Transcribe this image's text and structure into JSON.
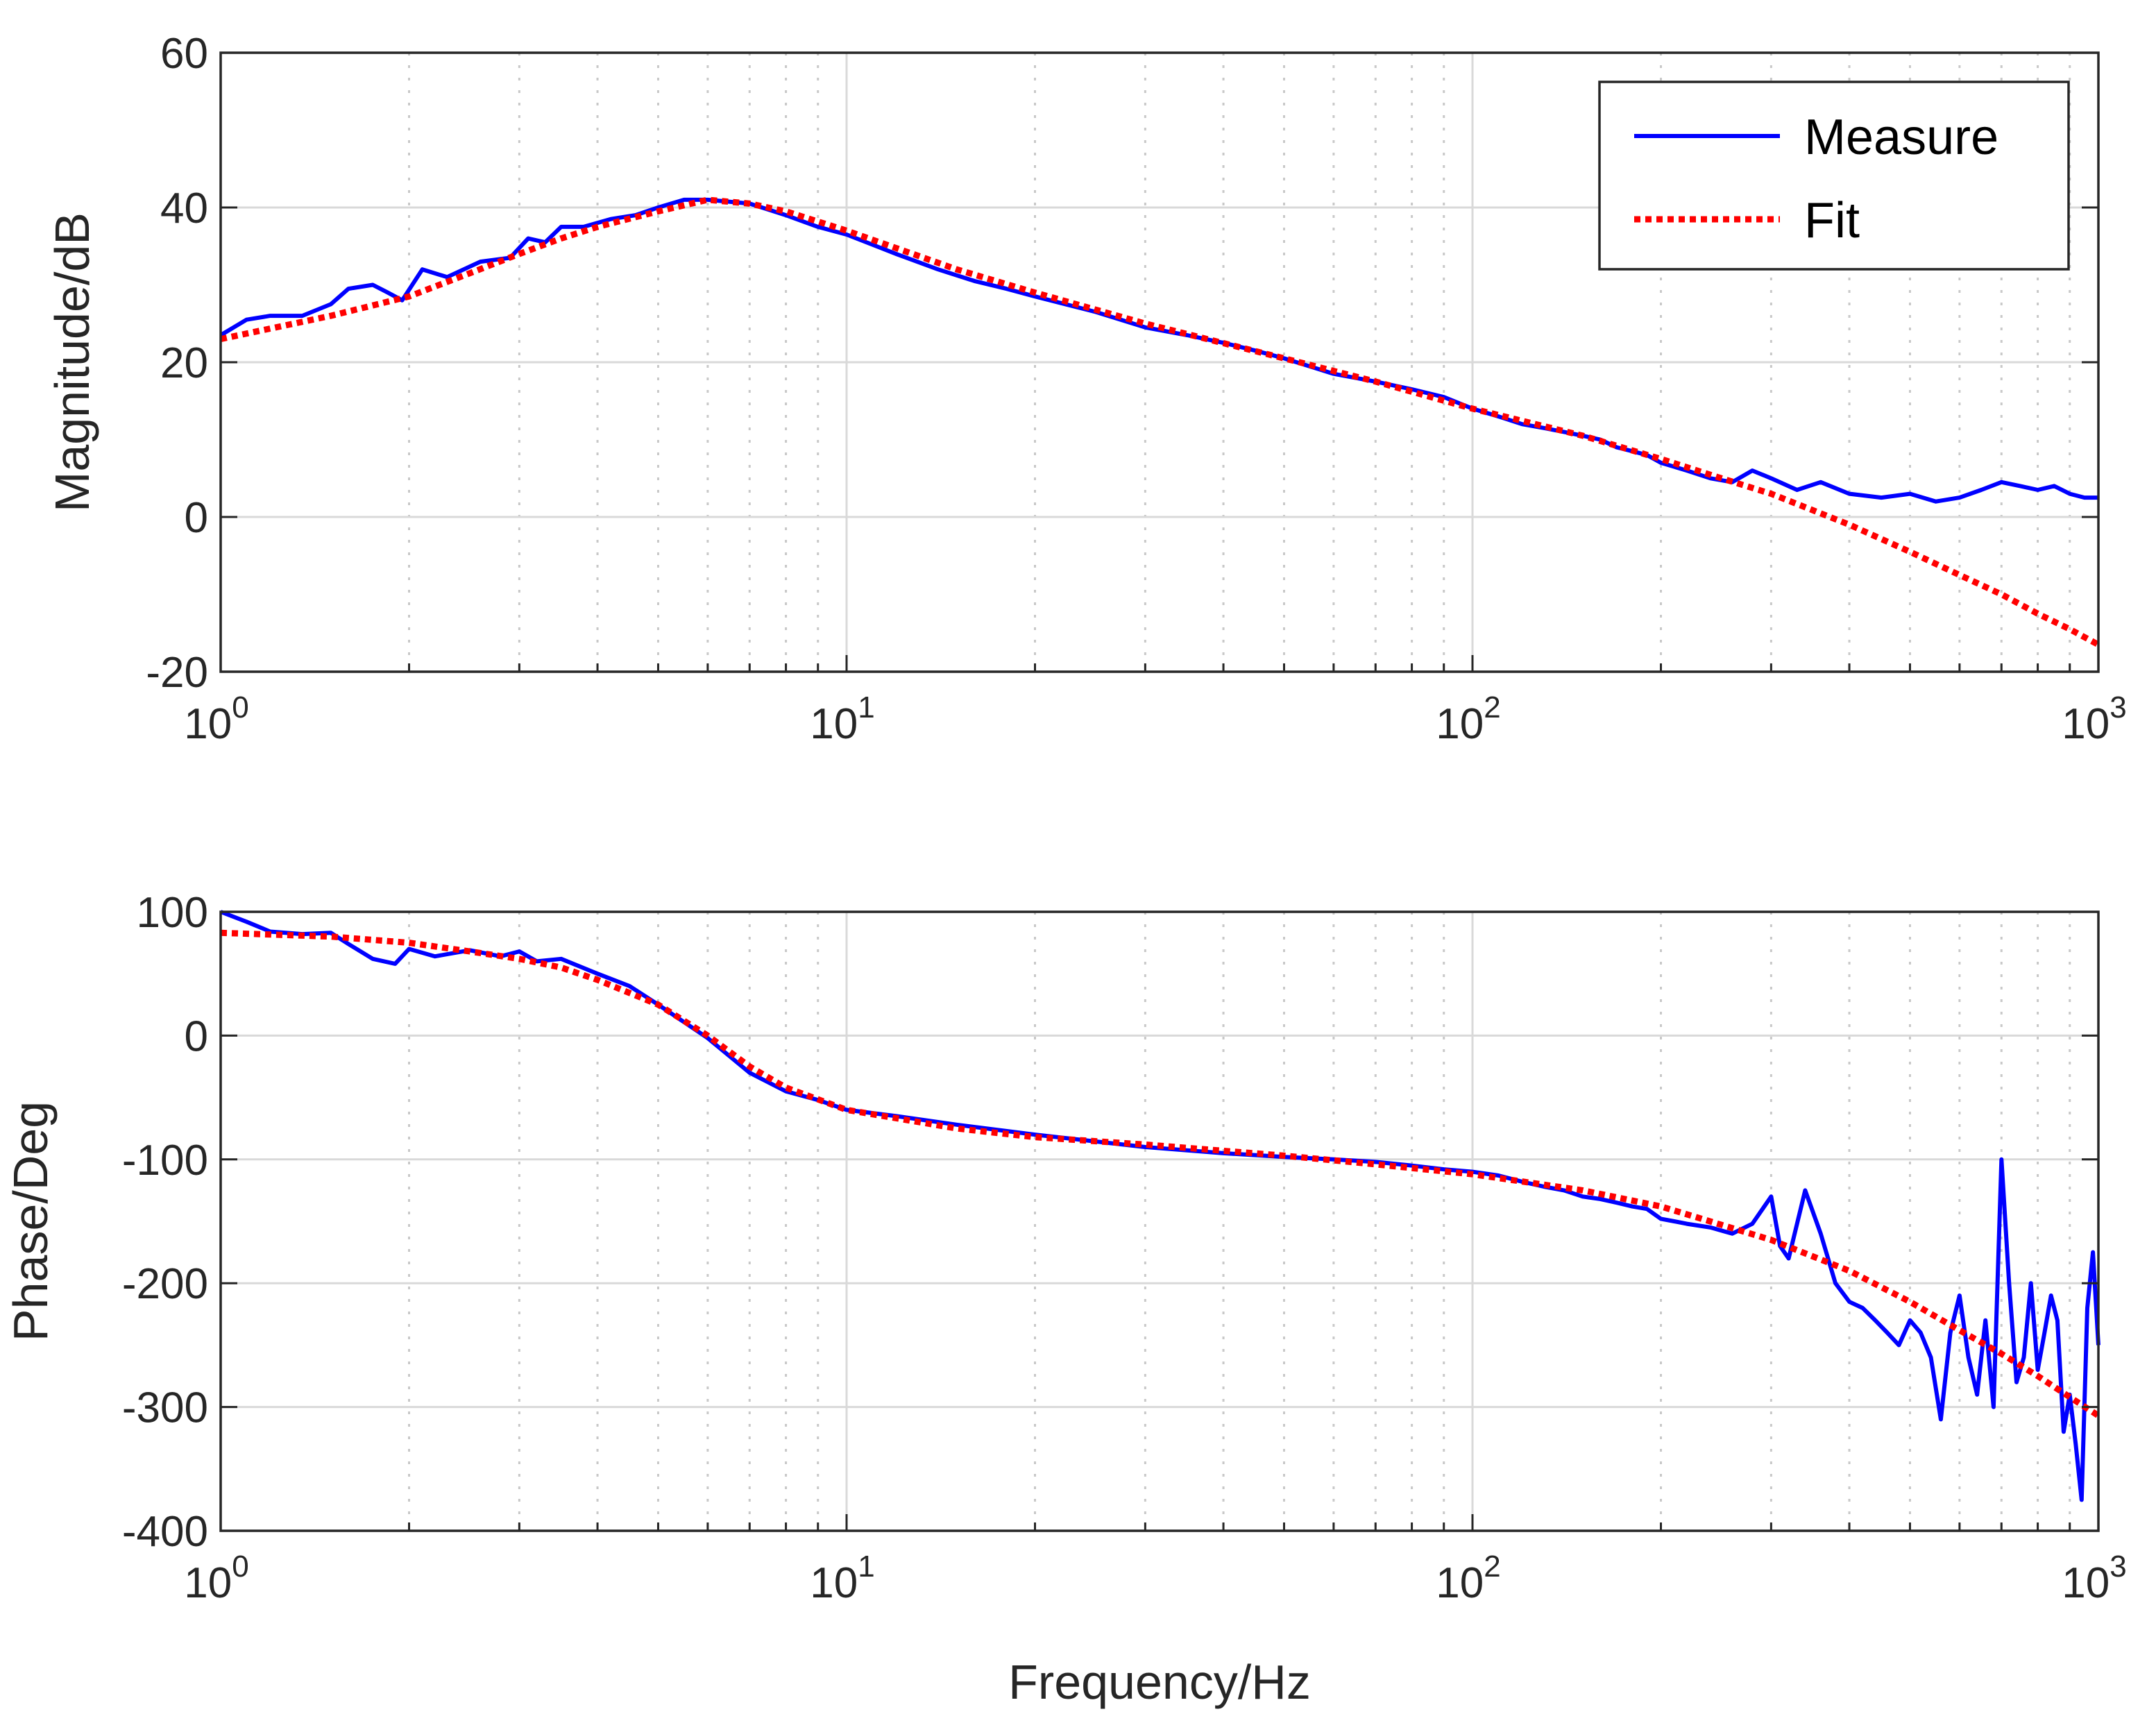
{
  "colors": {
    "measure": "#0000ff",
    "fit": "#ff0000",
    "axis": "#262626"
  },
  "chart_data": [
    {
      "type": "line",
      "name": "magnitude",
      "xscale": "log",
      "xlim": [
        1,
        1000
      ],
      "ylim": [
        -20,
        60
      ],
      "yticks": [
        -20,
        0,
        20,
        40,
        60
      ],
      "xticks": [
        {
          "value": 1,
          "base": "10",
          "exp": "0"
        },
        {
          "value": 10,
          "base": "10",
          "exp": "1"
        },
        {
          "value": 100,
          "base": "10",
          "exp": "2"
        },
        {
          "value": 1000,
          "base": "10",
          "exp": "3"
        }
      ],
      "xlabel": "",
      "ylabel": "Magnitude/dB",
      "grid": true,
      "legend": {
        "position": "top-right",
        "entries": [
          "Measure",
          "Fit"
        ]
      },
      "series": [
        {
          "name": "Measure",
          "style": "solid",
          "x": [
            1,
            1.1,
            1.2,
            1.35,
            1.5,
            1.6,
            1.75,
            1.85,
            1.95,
            2.1,
            2.3,
            2.6,
            2.9,
            3.1,
            3.3,
            3.5,
            3.8,
            4.2,
            4.6,
            5,
            5.5,
            6,
            7,
            8,
            9,
            10,
            12,
            14,
            16,
            18,
            20,
            25,
            30,
            35,
            40,
            45,
            50,
            60,
            70,
            80,
            90,
            100,
            110,
            120,
            130,
            140,
            150,
            160,
            170,
            180,
            190,
            200,
            220,
            240,
            260,
            280,
            300,
            330,
            360,
            400,
            450,
            500,
            550,
            600,
            650,
            700,
            750,
            800,
            850,
            900,
            950,
            1000
          ],
          "values": [
            23.5,
            25.5,
            26,
            26,
            27.5,
            29.5,
            30,
            29,
            28,
            32,
            31,
            33,
            33.5,
            36,
            35.5,
            37.5,
            37.5,
            38.5,
            39,
            40,
            41,
            41,
            40.5,
            39,
            37.5,
            36.5,
            34,
            32,
            30.5,
            29.5,
            28.5,
            26.5,
            24.5,
            23.5,
            22.5,
            21.5,
            20.5,
            18.5,
            17.5,
            16.5,
            15.5,
            14,
            13,
            12,
            11.5,
            11,
            10.5,
            10,
            9,
            8.5,
            8,
            7,
            6,
            5,
            4.5,
            6,
            5,
            3.5,
            4.5,
            3,
            2.5,
            3,
            2,
            2.5,
            3.5,
            4.5,
            4,
            3.5,
            4,
            3,
            2.5,
            2.5
          ]
        },
        {
          "name": "Fit",
          "style": "dotted",
          "x": [
            1,
            1.5,
            2,
            2.5,
            3,
            3.5,
            4,
            5,
            6,
            7,
            8,
            10,
            15,
            20,
            30,
            50,
            70,
            100,
            150,
            200,
            250,
            300,
            400,
            500,
            600,
            700,
            800,
            900,
            1000
          ],
          "values": [
            23,
            26,
            28.5,
            31.5,
            34,
            36,
            37.5,
            39.5,
            41,
            40.5,
            39.5,
            37,
            32,
            29,
            25,
            20.5,
            17.5,
            14,
            10.5,
            7.5,
            5,
            3,
            -1,
            -4.5,
            -7.5,
            -10,
            -12.5,
            -14.5,
            -16.5
          ]
        }
      ]
    },
    {
      "type": "line",
      "name": "phase",
      "xscale": "log",
      "xlim": [
        1,
        1000
      ],
      "ylim": [
        -400,
        100
      ],
      "yticks": [
        -400,
        -300,
        -200,
        -100,
        0,
        100
      ],
      "xticks": [
        {
          "value": 1,
          "base": "10",
          "exp": "0"
        },
        {
          "value": 10,
          "base": "10",
          "exp": "1"
        },
        {
          "value": 100,
          "base": "10",
          "exp": "2"
        },
        {
          "value": 1000,
          "base": "10",
          "exp": "3"
        }
      ],
      "xlabel": "Frequency/Hz",
      "ylabel": "Phase/Deg",
      "grid": true,
      "series": [
        {
          "name": "Measure",
          "style": "solid",
          "x": [
            1,
            1.1,
            1.2,
            1.35,
            1.5,
            1.6,
            1.75,
            1.9,
            2,
            2.2,
            2.5,
            2.8,
            3,
            3.2,
            3.5,
            4,
            4.5,
            5,
            6,
            7,
            8,
            9,
            10,
            12,
            15,
            20,
            30,
            40,
            50,
            60,
            70,
            80,
            90,
            100,
            110,
            120,
            130,
            140,
            150,
            160,
            170,
            180,
            190,
            200,
            210,
            220,
            240,
            260,
            280,
            300,
            310,
            320,
            340,
            360,
            380,
            400,
            420,
            440,
            460,
            480,
            500,
            520,
            540,
            560,
            580,
            600,
            620,
            640,
            660,
            680,
            700,
            720,
            740,
            760,
            780,
            800,
            820,
            840,
            860,
            880,
            900,
            920,
            940,
            960,
            980,
            1000
          ],
          "values": [
            100,
            92,
            84,
            82,
            83,
            74,
            62,
            58,
            70,
            64,
            69,
            64,
            68,
            60,
            62,
            50,
            40,
            25,
            -2,
            -30,
            -45,
            -52,
            -60,
            -65,
            -72,
            -80,
            -90,
            -95,
            -98,
            -100,
            -102,
            -105,
            -108,
            -110,
            -113,
            -118,
            -122,
            -125,
            -130,
            -132,
            -135,
            -138,
            -140,
            -148,
            -150,
            -152,
            -155,
            -160,
            -152,
            -130,
            -170,
            -180,
            -125,
            -160,
            -200,
            -215,
            -220,
            -230,
            -240,
            -250,
            -230,
            -240,
            -260,
            -310,
            -240,
            -210,
            -260,
            -290,
            -230,
            -300,
            -100,
            -200,
            -280,
            -260,
            -200,
            -270,
            -240,
            -210,
            -230,
            -320,
            -290,
            -330,
            -375,
            -220,
            -175,
            -250
          ]
        },
        {
          "name": "Fit",
          "style": "dotted",
          "x": [
            1,
            1.5,
            2,
            2.5,
            3,
            3.5,
            4,
            5,
            6,
            7,
            8,
            10,
            15,
            20,
            30,
            50,
            70,
            100,
            150,
            200,
            300,
            400,
            500,
            600,
            700,
            800,
            900,
            1000
          ],
          "values": [
            83,
            80,
            75,
            68,
            62,
            55,
            45,
            25,
            0,
            -25,
            -42,
            -60,
            -75,
            -82,
            -88,
            -97,
            -104,
            -112,
            -125,
            -138,
            -165,
            -190,
            -215,
            -238,
            -257,
            -275,
            -292,
            -307
          ]
        }
      ]
    }
  ]
}
